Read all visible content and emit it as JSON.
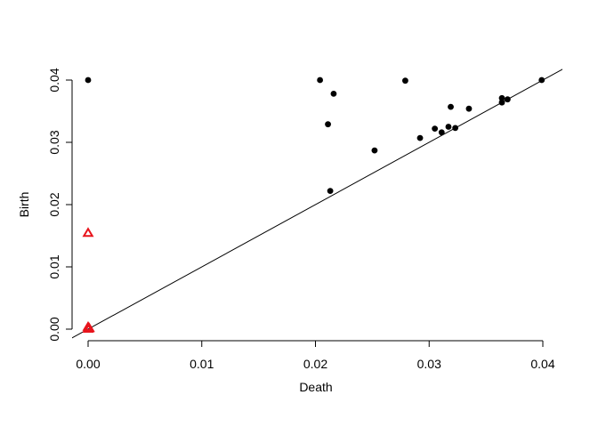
{
  "chart_data": {
    "type": "scatter",
    "title": "",
    "xlabel": "Death",
    "ylabel": "Birth",
    "xlim": [
      0,
      0.04
    ],
    "ylim": [
      0,
      0.04
    ],
    "xticks": [
      "0.00",
      "0.01",
      "0.02",
      "0.03",
      "0.04"
    ],
    "yticks": [
      "0.00",
      "0.01",
      "0.02",
      "0.03",
      "0.04"
    ],
    "grid": false,
    "diagonal_line": true,
    "series": [
      {
        "marker": "filled-circle",
        "color": "#000000",
        "points": [
          [
            0.0,
            0.04
          ],
          [
            0.0204,
            0.04
          ],
          [
            0.0279,
            0.0399
          ],
          [
            0.0216,
            0.0378
          ],
          [
            0.0211,
            0.0329
          ],
          [
            0.0213,
            0.0222
          ],
          [
            0.0252,
            0.0287
          ],
          [
            0.0292,
            0.0307
          ],
          [
            0.0305,
            0.0322
          ],
          [
            0.0311,
            0.0316
          ],
          [
            0.0317,
            0.0325
          ],
          [
            0.0319,
            0.0357
          ],
          [
            0.0323,
            0.0323
          ],
          [
            0.0335,
            0.0354
          ],
          [
            0.0364,
            0.0371
          ],
          [
            0.0364,
            0.0364
          ],
          [
            0.0369,
            0.0369
          ],
          [
            0.0399,
            0.04
          ]
        ]
      },
      {
        "marker": "open-triangle",
        "color": "#e8141c",
        "points": [
          [
            0.0,
            0.0154
          ],
          [
            0.0,
            0.0003
          ],
          [
            0.0001,
            0.0001
          ],
          [
            0.0,
            0.0
          ]
        ]
      }
    ]
  }
}
